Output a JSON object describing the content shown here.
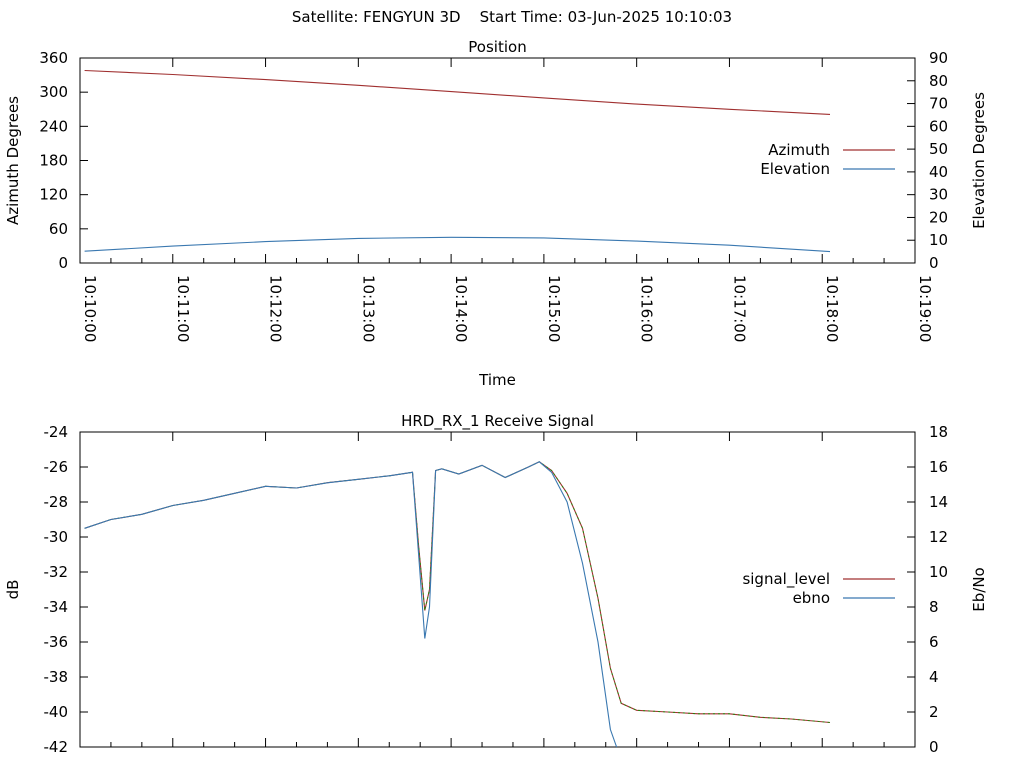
{
  "header": {
    "satellite": "Satellite: FENGYUN 3D",
    "start_time": "Start Time: 03-Jun-2025 10:10:03"
  },
  "colors": {
    "azimuth": "#a03030",
    "elevation": "#3a78b0",
    "signal_level": "#000000",
    "ebno": "#3a78b0",
    "signal_green": "#00a000",
    "axis": "#000000"
  },
  "chart_data": [
    {
      "type": "line",
      "title": "Position",
      "xlabel": "Time",
      "ylabel": "Azimuth Degrees",
      "y2label": "Elevation Degrees",
      "x_ticks": [
        "10:10:00",
        "10:11:00",
        "10:12:00",
        "10:13:00",
        "10:14:00",
        "10:15:00",
        "10:16:00",
        "10:17:00",
        "10:18:00",
        "10:19:00"
      ],
      "xlim": [
        "10:10:00",
        "10:19:00"
      ],
      "ylim": [
        0,
        360
      ],
      "y_ticks": [
        0,
        60,
        120,
        180,
        240,
        300,
        360
      ],
      "y2lim": [
        0,
        90
      ],
      "y2_ticks": [
        0,
        10,
        20,
        30,
        40,
        50,
        60,
        70,
        80,
        90
      ],
      "legend_position": "right",
      "series": [
        {
          "name": "Azimuth",
          "axis": "y",
          "x": [
            "10:10:03",
            "10:11:00",
            "10:12:00",
            "10:13:00",
            "10:14:00",
            "10:15:00",
            "10:16:00",
            "10:17:00",
            "10:18:05"
          ],
          "values": [
            338,
            331,
            322,
            312,
            301,
            290,
            279,
            270,
            261
          ]
        },
        {
          "name": "Elevation",
          "axis": "y2",
          "x": [
            "10:10:03",
            "10:11:00",
            "10:12:00",
            "10:13:00",
            "10:14:00",
            "10:15:00",
            "10:16:00",
            "10:17:00",
            "10:18:05"
          ],
          "values": [
            5.2,
            7.4,
            9.4,
            10.8,
            11.3,
            11.0,
            9.6,
            7.8,
            5.0
          ]
        }
      ]
    },
    {
      "type": "line",
      "title": "HRD_RX_1 Receive Signal",
      "ylabel": "dB",
      "y2label": "Eb/No",
      "ylim": [
        -42,
        -24
      ],
      "y_ticks": [
        -42,
        -40,
        -38,
        -36,
        -34,
        -32,
        -30,
        -28,
        -26,
        -24
      ],
      "y2lim": [
        0,
        18
      ],
      "y2_ticks": [
        0,
        2,
        4,
        6,
        8,
        10,
        12,
        14,
        16,
        18
      ],
      "xlim": [
        "10:10:00",
        "10:19:00"
      ],
      "legend_position": "right",
      "series": [
        {
          "name": "signal_level",
          "axis": "y",
          "x": [
            "10:10:03",
            "10:10:20",
            "10:10:40",
            "10:11:00",
            "10:11:20",
            "10:11:40",
            "10:12:00",
            "10:12:20",
            "10:12:40",
            "10:13:00",
            "10:13:20",
            "10:13:35",
            "10:13:39",
            "10:13:43",
            "10:13:46",
            "10:13:50",
            "10:13:54",
            "10:14:05",
            "10:14:20",
            "10:14:35",
            "10:14:50",
            "10:14:57",
            "10:15:05",
            "10:15:15",
            "10:15:25",
            "10:15:35",
            "10:15:43",
            "10:15:50",
            "10:16:00",
            "10:16:20",
            "10:16:40",
            "10:17:00",
            "10:17:20",
            "10:17:40",
            "10:18:05"
          ],
          "values": [
            -29.5,
            -29.0,
            -28.7,
            -28.2,
            -27.9,
            -27.5,
            -27.1,
            -27.2,
            -26.9,
            -26.7,
            -26.5,
            -26.3,
            -30.5,
            -34.2,
            -33.0,
            -26.2,
            -26.1,
            -26.4,
            -25.9,
            -26.6,
            -26.0,
            -25.7,
            -26.2,
            -27.5,
            -29.5,
            -33.5,
            -37.5,
            -39.5,
            -39.9,
            -40.0,
            -40.1,
            -40.1,
            -40.3,
            -40.4,
            -40.6
          ]
        },
        {
          "name": "ebno",
          "axis": "y2",
          "x": [
            "10:10:03",
            "10:10:20",
            "10:10:40",
            "10:11:00",
            "10:11:20",
            "10:11:40",
            "10:12:00",
            "10:12:20",
            "10:12:40",
            "10:13:00",
            "10:13:20",
            "10:13:35",
            "10:13:39",
            "10:13:43",
            "10:13:46",
            "10:13:50",
            "10:13:54",
            "10:14:05",
            "10:14:20",
            "10:14:35",
            "10:14:50",
            "10:14:57",
            "10:15:05",
            "10:15:15",
            "10:15:25",
            "10:15:35",
            "10:15:43",
            "10:15:47"
          ],
          "values": [
            12.5,
            13.0,
            13.3,
            13.8,
            14.1,
            14.5,
            14.9,
            14.8,
            15.1,
            15.3,
            15.5,
            15.7,
            11.0,
            6.2,
            8.0,
            15.8,
            15.9,
            15.6,
            16.1,
            15.4,
            16.0,
            16.3,
            15.7,
            14.0,
            10.5,
            6.0,
            1.0,
            0.0
          ]
        }
      ]
    }
  ]
}
